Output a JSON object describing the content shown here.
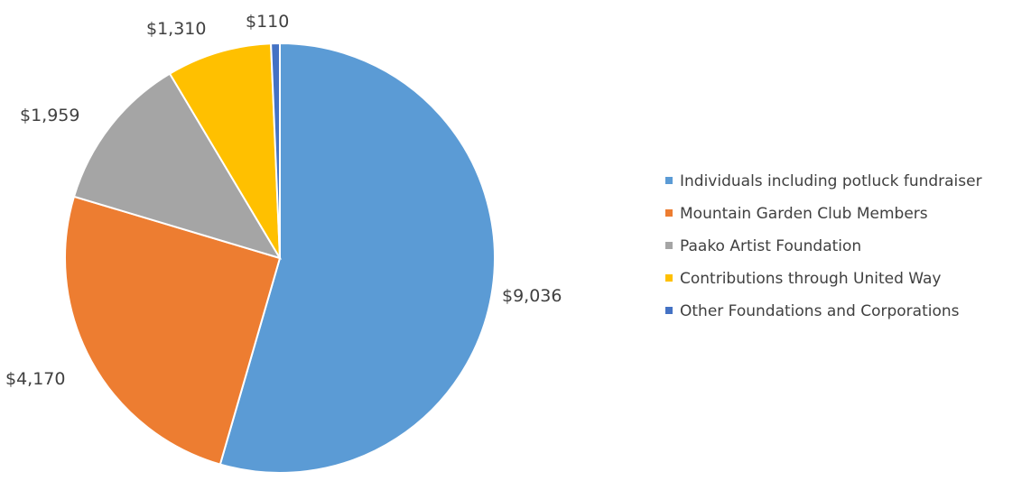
{
  "chart_data": {
    "type": "pie",
    "title": "",
    "categories": [
      "Individuals including potluck fundraiser",
      "Mountain Garden Club Members",
      "Paako Artist Foundation",
      "Contributions through United Way",
      "Other Foundations and Corporations"
    ],
    "values": [
      9036,
      4170,
      1959,
      1310,
      110
    ],
    "data_labels": [
      "$9,036",
      "$4,170",
      "$1,959",
      "$1,310",
      "$110"
    ],
    "colors": [
      "#5b9bd5",
      "#ed7d31",
      "#a5a5a5",
      "#ffc000",
      "#4472c4"
    ],
    "start_angle_deg": 0,
    "direction": "clockwise",
    "legend_position": "right"
  }
}
